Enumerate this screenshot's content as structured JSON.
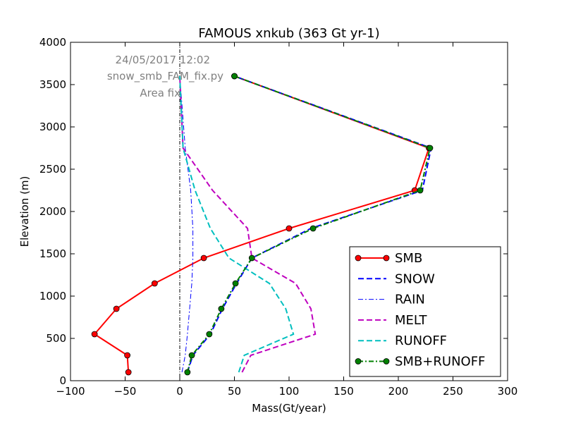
{
  "chart_data": {
    "type": "line",
    "title": "FAMOUS xnkub (363 Gt yr-1)",
    "xlabel": "Mass(Gt/year)",
    "ylabel": "Elevation (m)",
    "xlim": [
      -100,
      300
    ],
    "ylim": [
      0,
      4000
    ],
    "xticks": [
      -100,
      -50,
      0,
      50,
      100,
      150,
      200,
      250,
      300
    ],
    "yticks": [
      0,
      500,
      1000,
      1500,
      2000,
      2500,
      3000,
      3500,
      4000
    ],
    "xtick_labels": [
      "−100",
      "−50",
      "0",
      "50",
      "100",
      "150",
      "200",
      "250",
      "300"
    ],
    "ytick_labels": [
      "0",
      "500",
      "1000",
      "1500",
      "2000",
      "2500",
      "3000",
      "3500",
      "4000"
    ],
    "grid": false,
    "legend_position": "lower-right",
    "annotations": [
      "24/05/2017 12:02",
      "snow_smb_FAM_fix.py",
      "Area fix"
    ],
    "series": [
      {
        "name": "SMB",
        "color": "#ff0000",
        "style": "solid",
        "marker": "circle",
        "points": [
          [
            -47,
            100
          ],
          [
            -48,
            300
          ],
          [
            -78,
            550
          ],
          [
            -58,
            850
          ],
          [
            -23,
            1150
          ],
          [
            22,
            1450
          ],
          [
            100,
            1800
          ],
          [
            215,
            2250
          ],
          [
            228,
            2750
          ],
          [
            50,
            3600
          ]
        ]
      },
      {
        "name": "SNOW",
        "color": "#0000ff",
        "style": "dashed",
        "marker": "none",
        "points": [
          [
            7,
            100
          ],
          [
            12,
            300
          ],
          [
            28,
            550
          ],
          [
            39,
            850
          ],
          [
            52,
            1150
          ],
          [
            66,
            1450
          ],
          [
            120,
            1800
          ],
          [
            222,
            2250
          ],
          [
            230,
            2750
          ],
          [
            50,
            3600
          ]
        ]
      },
      {
        "name": "RAIN",
        "color": "#0000ff",
        "style": "dashdot",
        "marker": "none",
        "points": [
          [
            2,
            100
          ],
          [
            5,
            300
          ],
          [
            7,
            550
          ],
          [
            9,
            850
          ],
          [
            11,
            1150
          ],
          [
            12,
            1450
          ],
          [
            12,
            1800
          ],
          [
            10,
            2250
          ],
          [
            5,
            2750
          ],
          [
            0,
            3600
          ]
        ]
      },
      {
        "name": "MELT",
        "color": "#bf00bf",
        "style": "dashed",
        "marker": "none",
        "points": [
          [
            57,
            100
          ],
          [
            65,
            300
          ],
          [
            124,
            550
          ],
          [
            120,
            850
          ],
          [
            106,
            1150
          ],
          [
            66,
            1450
          ],
          [
            62,
            1800
          ],
          [
            30,
            2250
          ],
          [
            3,
            2750
          ],
          [
            0,
            3600
          ]
        ]
      },
      {
        "name": "RUNOFF",
        "color": "#00bfbf",
        "style": "dashed",
        "marker": "none",
        "points": [
          [
            54,
            100
          ],
          [
            59,
            300
          ],
          [
            104,
            550
          ],
          [
            97,
            850
          ],
          [
            82,
            1150
          ],
          [
            45,
            1450
          ],
          [
            28,
            1800
          ],
          [
            14,
            2250
          ],
          [
            3,
            2750
          ],
          [
            0,
            3600
          ]
        ]
      },
      {
        "name": "SMB+RUNOFF",
        "color": "#008000",
        "style": "dashdot",
        "marker": "circle",
        "points": [
          [
            7,
            100
          ],
          [
            11,
            300
          ],
          [
            27,
            550
          ],
          [
            38,
            850
          ],
          [
            51,
            1150
          ],
          [
            66,
            1450
          ],
          [
            122,
            1800
          ],
          [
            220,
            2250
          ],
          [
            229,
            2750
          ],
          [
            50,
            3600
          ]
        ]
      }
    ]
  }
}
